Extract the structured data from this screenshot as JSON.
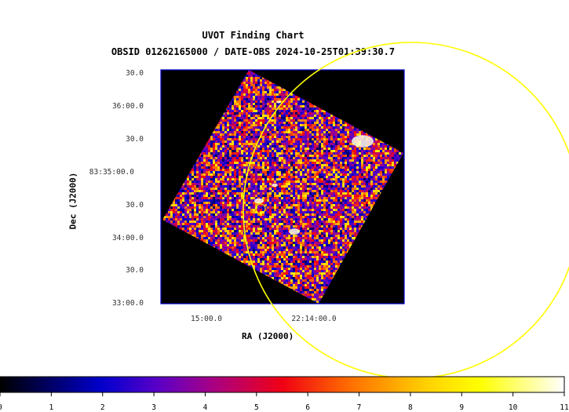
{
  "chart_data": {
    "type": "heatmap",
    "title": "UVOT Finding Chart",
    "subtitle": "OBSID 01262165000 / DATE-OBS 2024-10-25T01:39:30.7",
    "xlabel": "RA (J2000)",
    "ylabel": "Dec (J2000)",
    "x_tick_labels": [
      "15:00.0",
      "22:14:00.0"
    ],
    "y_tick_labels": [
      "30.0",
      "36:00.0",
      "30.0",
      "83:35:00.0",
      "30.0",
      "34:00.0",
      "30.0",
      "33:00.0"
    ],
    "colorbar": {
      "ticks": [
        0,
        1,
        2,
        3,
        4,
        5,
        6,
        7,
        8,
        9,
        10,
        11
      ],
      "range": [
        0,
        11
      ],
      "colormap": "heat"
    },
    "grid": false,
    "colors": {
      "background": "#000000",
      "frame": "#0000cc",
      "circle": "#ffff00"
    }
  }
}
